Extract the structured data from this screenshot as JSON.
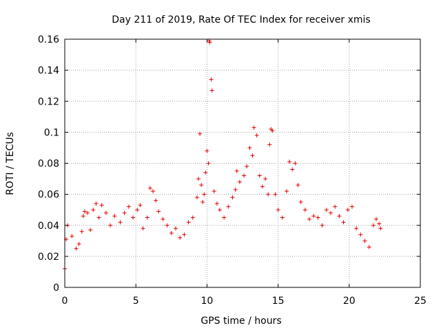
{
  "chart_data": {
    "type": "scatter",
    "title": "Day 211 of 2019, Rate Of TEC Index for receiver xmis",
    "xlabel": "GPS time / hours",
    "ylabel": "ROTI / TECUs",
    "xlim": [
      0,
      25
    ],
    "ylim": [
      0,
      0.16
    ],
    "x_ticks": [
      0,
      5,
      10,
      15,
      20,
      25
    ],
    "x_tick_labels": [
      "0",
      "5",
      "10",
      "15",
      "20",
      "25"
    ],
    "y_ticks": [
      0,
      0.02,
      0.04,
      0.06,
      0.08,
      0.1,
      0.12,
      0.14,
      0.16
    ],
    "y_tick_labels": [
      "0",
      "0.02",
      "0.04",
      "0.06",
      "0.08",
      "0.1",
      "0.12",
      "0.14",
      "0.16"
    ],
    "grid": true,
    "marker": "plus",
    "colors": {
      "marker": "#e00000",
      "grid": "#a0a0a0",
      "axis": "#000000"
    },
    "series": [
      {
        "points": [
          [
            0.0,
            0.012
          ],
          [
            0.1,
            0.031
          ],
          [
            0.2,
            0.04
          ],
          [
            0.5,
            0.033
          ],
          [
            0.8,
            0.025
          ],
          [
            1.0,
            0.028
          ],
          [
            1.2,
            0.036
          ],
          [
            1.3,
            0.046
          ],
          [
            1.4,
            0.049
          ],
          [
            1.6,
            0.048
          ],
          [
            1.8,
            0.037
          ],
          [
            2.0,
            0.05
          ],
          [
            2.2,
            0.054
          ],
          [
            2.4,
            0.045
          ],
          [
            2.6,
            0.053
          ],
          [
            2.9,
            0.048
          ],
          [
            3.2,
            0.04
          ],
          [
            3.5,
            0.046
          ],
          [
            3.9,
            0.042
          ],
          [
            4.2,
            0.048
          ],
          [
            4.5,
            0.052
          ],
          [
            4.8,
            0.045
          ],
          [
            5.1,
            0.05
          ],
          [
            5.3,
            0.053
          ],
          [
            5.5,
            0.038
          ],
          [
            5.8,
            0.045
          ],
          [
            6.0,
            0.064
          ],
          [
            6.2,
            0.062
          ],
          [
            6.4,
            0.056
          ],
          [
            6.6,
            0.049
          ],
          [
            6.9,
            0.044
          ],
          [
            7.2,
            0.04
          ],
          [
            7.5,
            0.035
          ],
          [
            7.8,
            0.038
          ],
          [
            8.1,
            0.032
          ],
          [
            8.4,
            0.034
          ],
          [
            8.7,
            0.042
          ],
          [
            9.0,
            0.045
          ],
          [
            9.3,
            0.058
          ],
          [
            9.4,
            0.07
          ],
          [
            9.5,
            0.099
          ],
          [
            9.6,
            0.066
          ],
          [
            9.7,
            0.055
          ],
          [
            9.8,
            0.06
          ],
          [
            9.9,
            0.074
          ],
          [
            10.0,
            0.088
          ],
          [
            10.1,
            0.08
          ],
          [
            10.15,
            0.159
          ],
          [
            10.2,
            0.158
          ],
          [
            10.3,
            0.134
          ],
          [
            10.35,
            0.127
          ],
          [
            10.5,
            0.062
          ],
          [
            10.7,
            0.054
          ],
          [
            10.9,
            0.05
          ],
          [
            11.2,
            0.045
          ],
          [
            11.5,
            0.052
          ],
          [
            11.8,
            0.058
          ],
          [
            12.0,
            0.063
          ],
          [
            12.1,
            0.075
          ],
          [
            12.3,
            0.068
          ],
          [
            12.6,
            0.072
          ],
          [
            12.8,
            0.078
          ],
          [
            13.0,
            0.09
          ],
          [
            13.2,
            0.085
          ],
          [
            13.3,
            0.103
          ],
          [
            13.5,
            0.098
          ],
          [
            13.7,
            0.072
          ],
          [
            13.9,
            0.065
          ],
          [
            14.1,
            0.07
          ],
          [
            14.3,
            0.06
          ],
          [
            14.4,
            0.092
          ],
          [
            14.5,
            0.102
          ],
          [
            14.6,
            0.101
          ],
          [
            14.8,
            0.06
          ],
          [
            15.0,
            0.05
          ],
          [
            15.3,
            0.045
          ],
          [
            15.6,
            0.062
          ],
          [
            15.8,
            0.081
          ],
          [
            16.0,
            0.076
          ],
          [
            16.2,
            0.08
          ],
          [
            16.4,
            0.066
          ],
          [
            16.6,
            0.055
          ],
          [
            16.9,
            0.05
          ],
          [
            17.2,
            0.044
          ],
          [
            17.5,
            0.046
          ],
          [
            17.8,
            0.045
          ],
          [
            18.1,
            0.04
          ],
          [
            18.4,
            0.05
          ],
          [
            18.7,
            0.048
          ],
          [
            19.0,
            0.052
          ],
          [
            19.3,
            0.046
          ],
          [
            19.6,
            0.042
          ],
          [
            19.9,
            0.05
          ],
          [
            20.2,
            0.052
          ],
          [
            20.5,
            0.038
          ],
          [
            20.8,
            0.034
          ],
          [
            21.1,
            0.03
          ],
          [
            21.4,
            0.026
          ],
          [
            21.7,
            0.04
          ],
          [
            21.9,
            0.044
          ],
          [
            22.1,
            0.041
          ],
          [
            22.2,
            0.038
          ]
        ]
      }
    ]
  }
}
